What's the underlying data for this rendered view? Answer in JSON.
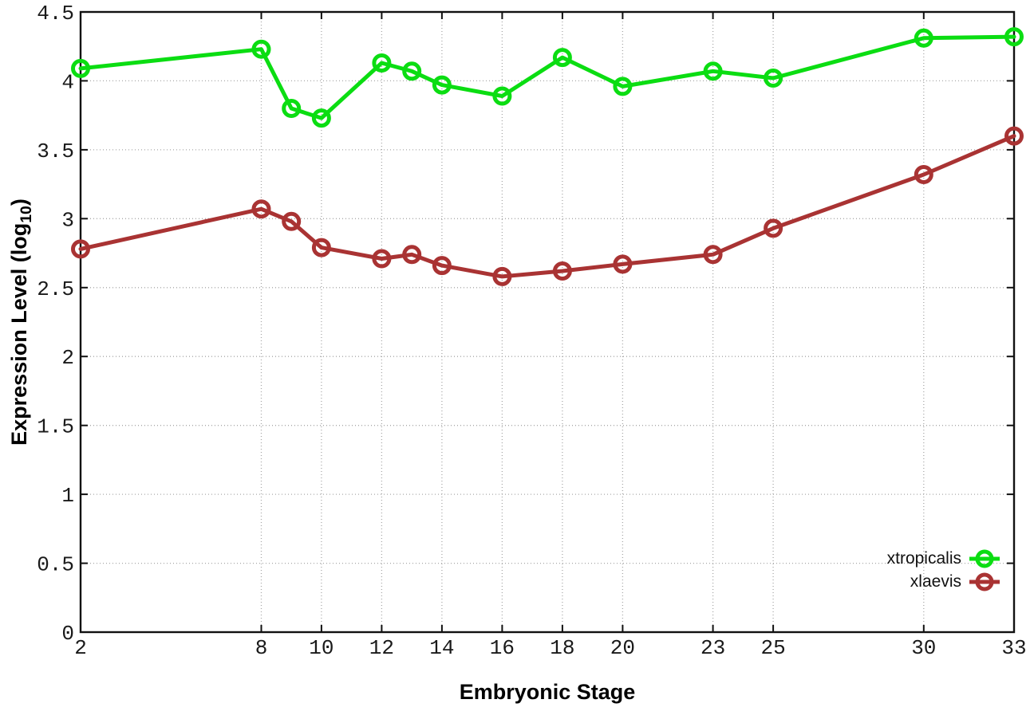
{
  "page": {
    "background": "#ffffff"
  },
  "chart_data": {
    "type": "line",
    "title": "",
    "xlabel": "Embryonic Stage",
    "ylabel": "Expression Level (log10)",
    "ylabel_parts": {
      "pre": "Expression Level (log",
      "sub": "10",
      "post": ")"
    },
    "xlim": [
      2,
      33
    ],
    "ylim": [
      0,
      4.5
    ],
    "grid": true,
    "legend_position": "inside-bottom-right",
    "x": [
      2,
      8,
      9,
      10,
      12,
      13,
      14,
      16,
      18,
      20,
      23,
      25,
      30,
      33
    ],
    "xtick_values": [
      2,
      8,
      10,
      12,
      14,
      16,
      18,
      20,
      23,
      25,
      30,
      33
    ],
    "xtick_labels": [
      "2",
      "8",
      "10",
      "12",
      "14",
      "16",
      "18",
      "20",
      "23",
      "25",
      "30",
      "33"
    ],
    "ytick_values": [
      0,
      0.5,
      1,
      1.5,
      2,
      2.5,
      3,
      3.5,
      4,
      4.5
    ],
    "ytick_labels": [
      "0",
      "0.5",
      "1",
      "1.5",
      "2",
      "2.5",
      "3",
      "3.5",
      "4",
      "4.5"
    ],
    "series": [
      {
        "name": "xtropicalis",
        "color": "#0bdd12",
        "marker": "open-circle",
        "values": [
          4.09,
          4.23,
          3.8,
          3.73,
          4.13,
          4.07,
          3.97,
          3.89,
          4.17,
          3.96,
          4.07,
          4.02,
          4.31,
          4.32
        ]
      },
      {
        "name": "xlaevis",
        "color": "#a93333",
        "marker": "open-circle",
        "values": [
          2.78,
          3.07,
          2.98,
          2.79,
          2.71,
          2.74,
          2.66,
          2.58,
          2.62,
          2.67,
          2.74,
          2.93,
          3.32,
          3.6
        ]
      }
    ],
    "colors": {
      "axis": "#111111",
      "grid": "#a8a8a8",
      "tick_text": "#1a1a1a"
    }
  }
}
